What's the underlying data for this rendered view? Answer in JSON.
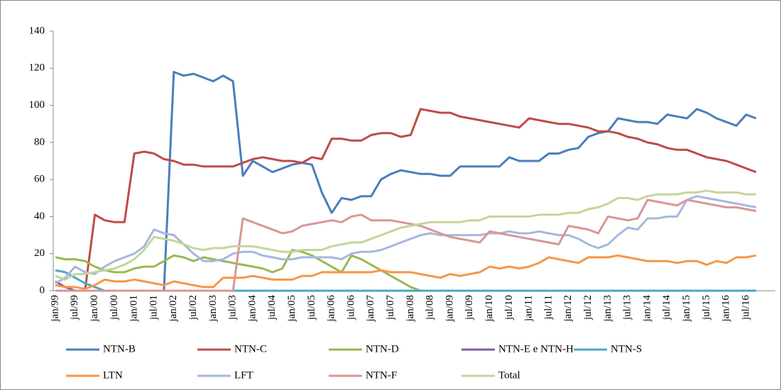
{
  "chart_data": {
    "type": "line",
    "categories": [
      "jan/99",
      null,
      "jul/99",
      null,
      "jan/00",
      null,
      "jul/00",
      null,
      "jan/01",
      null,
      "jul/01",
      null,
      "jan/02",
      null,
      "jul/02",
      null,
      "jan/03",
      null,
      "jul/03",
      null,
      "jan/04",
      null,
      "jul/04",
      null,
      "jan/05",
      null,
      "jul/05",
      null,
      "jan/06",
      null,
      "jul/06",
      null,
      "jan/07",
      null,
      "jul/07",
      null,
      "jan/08",
      null,
      "jul/08",
      null,
      "jan/09",
      null,
      "jul/09",
      null,
      "jan/10",
      null,
      "jul/10",
      null,
      "jan/11",
      null,
      "jul/11",
      null,
      "jan/12",
      null,
      "jul/12",
      null,
      "jan/13",
      null,
      "jul/13",
      null,
      "jan/14",
      null,
      "jul/14",
      null,
      "jan/15",
      null,
      "jul/15",
      null,
      "jan/16",
      null,
      "jul/16",
      null
    ],
    "ylim": [
      0,
      140
    ],
    "yticks": [
      0,
      20,
      40,
      60,
      80,
      100,
      120,
      140
    ],
    "grid": false,
    "series": [
      {
        "name": "NTN-B",
        "color": "#4a7ebb",
        "values": [
          0,
          0,
          0,
          0,
          0,
          0,
          0,
          0,
          0,
          0,
          0,
          0,
          118,
          116,
          117,
          115,
          113,
          116,
          113,
          62,
          70,
          67,
          64,
          66,
          68,
          69,
          68,
          53,
          42,
          50,
          49,
          51,
          51,
          60,
          63,
          65,
          64,
          63,
          63,
          62,
          62,
          67,
          67,
          67,
          67,
          67,
          72,
          70,
          70,
          70,
          74,
          74,
          76,
          77,
          83,
          85,
          86,
          93,
          92,
          91,
          91,
          90,
          95,
          94,
          93,
          98,
          96,
          93,
          91,
          89,
          95,
          93
        ]
      },
      {
        "name": "NTN-C",
        "color": "#be4b48",
        "values": [
          0,
          0,
          0,
          0,
          41,
          38,
          37,
          37,
          74,
          75,
          74,
          71,
          70,
          68,
          68,
          67,
          67,
          67,
          67,
          69,
          71,
          72,
          71,
          70,
          70,
          69,
          72,
          71,
          82,
          82,
          81,
          81,
          84,
          85,
          85,
          83,
          84,
          98,
          97,
          96,
          96,
          94,
          93,
          92,
          91,
          90,
          89,
          88,
          93,
          92,
          91,
          90,
          90,
          89,
          88,
          86,
          86,
          85,
          83,
          82,
          80,
          79,
          77,
          76,
          76,
          74,
          72,
          71,
          70,
          68,
          66,
          64
        ]
      },
      {
        "name": "NTN-D",
        "color": "#98b954",
        "values": [
          18,
          17,
          17,
          16,
          13,
          11,
          10,
          10,
          12,
          13,
          13,
          16,
          19,
          18,
          16,
          18,
          17,
          16,
          15,
          14,
          13,
          12,
          10,
          12,
          22,
          21,
          19,
          16,
          13,
          10,
          19,
          17,
          14,
          11,
          8,
          5,
          2,
          0,
          0,
          0,
          0,
          0,
          0,
          0,
          0,
          0,
          0,
          0,
          0,
          0,
          0,
          0,
          0,
          0,
          0,
          0,
          0,
          0,
          0,
          0,
          0,
          0,
          0,
          0,
          0,
          0,
          0,
          0,
          0,
          0,
          0,
          0
        ]
      },
      {
        "name": "NTN-E e NTN-H",
        "color": "#7d60a0",
        "values": [
          5,
          2,
          0,
          0,
          0,
          0,
          0,
          0,
          0,
          0,
          0,
          0,
          0,
          0,
          0,
          0,
          0,
          0,
          0,
          0,
          0,
          0,
          0,
          0,
          0,
          0,
          0,
          0,
          0,
          0,
          0,
          0,
          0,
          0,
          0,
          0,
          0,
          0,
          0,
          0,
          0,
          0,
          0,
          0,
          0,
          0,
          0,
          0,
          0,
          0,
          0,
          0,
          0,
          0,
          0,
          0,
          0,
          0,
          0,
          0,
          0,
          0,
          0,
          0,
          0,
          0,
          0,
          0,
          0,
          0,
          0,
          0
        ]
      },
      {
        "name": "NTN-S",
        "color": "#46aac5",
        "values": [
          11,
          10,
          7,
          4,
          2,
          0,
          0,
          0,
          0,
          0,
          0,
          0,
          0,
          0,
          0,
          0,
          0,
          0,
          0,
          0,
          0,
          0,
          0,
          0,
          0,
          0,
          0,
          0,
          0,
          0,
          0,
          0,
          0,
          0,
          0,
          0,
          0,
          0,
          0,
          0,
          0,
          0,
          0,
          0,
          0,
          0,
          0,
          0,
          0,
          0,
          0,
          0,
          0,
          0,
          0,
          0,
          0,
          0,
          0,
          0,
          0,
          0,
          0,
          0,
          0,
          0,
          0,
          0,
          0,
          0,
          0,
          0
        ]
      },
      {
        "name": "LTN",
        "color": "#f79646",
        "values": [
          3,
          2,
          2,
          1,
          3,
          6,
          5,
          5,
          6,
          5,
          4,
          3,
          5,
          4,
          3,
          2,
          2,
          7,
          7,
          7,
          8,
          7,
          6,
          6,
          6,
          8,
          8,
          10,
          10,
          10,
          10,
          10,
          10,
          11,
          10,
          10,
          10,
          9,
          8,
          7,
          9,
          8,
          9,
          10,
          13,
          12,
          13,
          12,
          13,
          15,
          18,
          17,
          16,
          15,
          18,
          18,
          18,
          19,
          18,
          17,
          16,
          16,
          16,
          15,
          16,
          16,
          14,
          16,
          15,
          18,
          18,
          19
        ]
      },
      {
        "name": "LFT",
        "color": "#a5b8de",
        "values": [
          4,
          7,
          13,
          10,
          9,
          13,
          16,
          18,
          20,
          24,
          33,
          31,
          30,
          25,
          20,
          16,
          16,
          17,
          20,
          21,
          21,
          19,
          18,
          17,
          17,
          18,
          18,
          18,
          18,
          17,
          20,
          21,
          21,
          22,
          24,
          26,
          28,
          30,
          31,
          30,
          30,
          30,
          30,
          30,
          31,
          31,
          32,
          31,
          31,
          32,
          31,
          30,
          30,
          28,
          25,
          23,
          25,
          30,
          34,
          33,
          39,
          39,
          40,
          40,
          49,
          51,
          50,
          49,
          48,
          47,
          46,
          45
        ]
      },
      {
        "name": "NTN-F",
        "color": "#d99694",
        "values": [
          0,
          0,
          0,
          0,
          0,
          0,
          0,
          0,
          0,
          0,
          0,
          0,
          0,
          0,
          0,
          0,
          0,
          0,
          0,
          39,
          37,
          35,
          33,
          31,
          32,
          35,
          36,
          37,
          38,
          37,
          40,
          41,
          38,
          38,
          38,
          37,
          36,
          35,
          33,
          31,
          29,
          28,
          27,
          26,
          32,
          31,
          30,
          29,
          28,
          27,
          26,
          25,
          35,
          34,
          33,
          31,
          40,
          39,
          38,
          39,
          49,
          48,
          47,
          46,
          49,
          48,
          47,
          46,
          45,
          45,
          44,
          43
        ]
      },
      {
        "name": "Total",
        "color": "#c3d69b",
        "values": [
          8,
          6,
          9,
          9,
          10,
          11,
          12,
          14,
          17,
          22,
          29,
          28,
          27,
          25,
          23,
          22,
          23,
          23,
          24,
          24,
          24,
          23,
          22,
          21,
          21,
          22,
          22,
          22,
          24,
          25,
          26,
          26,
          28,
          30,
          32,
          34,
          35,
          36,
          37,
          37,
          37,
          37,
          38,
          38,
          40,
          40,
          40,
          40,
          40,
          41,
          41,
          41,
          42,
          42,
          44,
          45,
          47,
          50,
          50,
          49,
          51,
          52,
          52,
          52,
          53,
          53,
          54,
          53,
          53,
          53,
          52,
          52
        ]
      }
    ]
  }
}
